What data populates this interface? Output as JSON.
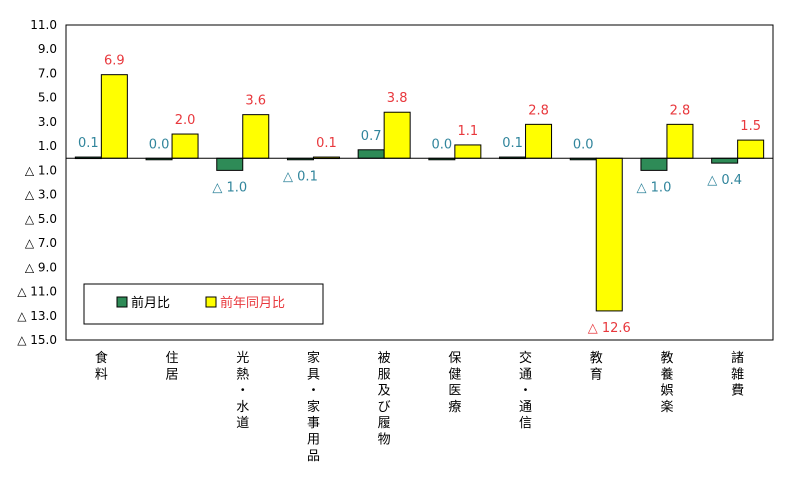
{
  "chart_data": {
    "type": "bar",
    "categories": [
      "食料",
      "住居",
      "光熱・水道",
      "家具・家事用品",
      "被服及び履物",
      "保健医療",
      "交通・通信",
      "教育",
      "教養娯楽",
      "諸雑費"
    ],
    "series": [
      {
        "name": "前月比",
        "values": [
          0.1,
          0.0,
          -1.0,
          -0.1,
          0.7,
          0.0,
          0.1,
          0.0,
          -1.0,
          -0.4
        ],
        "labels": [
          "0.1",
          "0.0",
          "△ 1.0",
          "△ 0.1",
          "0.7",
          "0.0",
          "0.1",
          "0.0",
          "△ 1.0",
          "△ 0.4"
        ],
        "color": "#2e8b57",
        "label_color": "#31859c"
      },
      {
        "name": "前年同月比",
        "values": [
          6.9,
          2.0,
          3.6,
          0.1,
          3.8,
          1.1,
          2.8,
          -12.6,
          2.8,
          1.5
        ],
        "labels": [
          "6.9",
          "2.0",
          "3.6",
          "0.1",
          "3.8",
          "1.1",
          "2.8",
          "△ 12.6",
          "2.8",
          "1.5"
        ],
        "color": "#ffff00",
        "label_color": "#e8383d"
      }
    ],
    "ylim": [
      -15.0,
      11.0
    ],
    "yticks": [
      11.0,
      9.0,
      7.0,
      5.0,
      3.0,
      1.0,
      -1.0,
      -3.0,
      -5.0,
      -7.0,
      -9.0,
      -11.0,
      -13.0,
      -15.0
    ],
    "ytick_labels": [
      "11.0",
      "9.0",
      "7.0",
      "5.0",
      "3.0",
      "1.0",
      "△ 1.0",
      "△ 3.0",
      "△ 5.0",
      "△ 7.0",
      "△ 9.0",
      "△ 11.0",
      "△ 13.0",
      "△ 15.0"
    ],
    "grid": false,
    "legend": "bottom-left",
    "title": "",
    "xlabel": "",
    "ylabel": ""
  }
}
